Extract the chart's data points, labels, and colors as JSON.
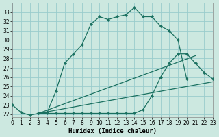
{
  "xlabel": "Humidex (Indice chaleur)",
  "background_color": "#cce8e0",
  "grid_color": "#99cccc",
  "line_color": "#1a7060",
  "xlim": [
    0,
    23
  ],
  "ylim": [
    21.7,
    34.0
  ],
  "yticks": [
    22,
    23,
    24,
    25,
    26,
    27,
    28,
    29,
    30,
    31,
    32,
    33
  ],
  "xticks": [
    0,
    1,
    2,
    3,
    4,
    5,
    6,
    7,
    8,
    9,
    10,
    11,
    12,
    13,
    14,
    15,
    16,
    17,
    18,
    19,
    20,
    21,
    22,
    23
  ],
  "line1_x": [
    0,
    1,
    2,
    3,
    4,
    5,
    6,
    7,
    8,
    9,
    10,
    11,
    12,
    13,
    14,
    15,
    16,
    17,
    18,
    19,
    20
  ],
  "line1_y": [
    23.0,
    22.2,
    21.9,
    22.1,
    22.2,
    24.5,
    27.5,
    28.5,
    29.5,
    31.7,
    32.5,
    32.2,
    32.5,
    32.7,
    33.5,
    32.5,
    32.5,
    31.5,
    31.0,
    30.0,
    25.8
  ],
  "line2_x": [
    3,
    4,
    5,
    6,
    7,
    8,
    9,
    10,
    11,
    12,
    13,
    14,
    15,
    16,
    17,
    18,
    19,
    20,
    21,
    22,
    23
  ],
  "line2_y": [
    22.1,
    22.1,
    22.1,
    22.1,
    22.1,
    22.1,
    22.1,
    22.1,
    22.1,
    22.1,
    22.1,
    22.1,
    22.5,
    24.0,
    26.0,
    27.5,
    28.5,
    28.5,
    27.5,
    26.5,
    25.8
  ],
  "line3_x": [
    3,
    21
  ],
  "line3_y": [
    22.1,
    28.3
  ],
  "line4_x": [
    3,
    23
  ],
  "line4_y": [
    22.1,
    25.5
  ]
}
